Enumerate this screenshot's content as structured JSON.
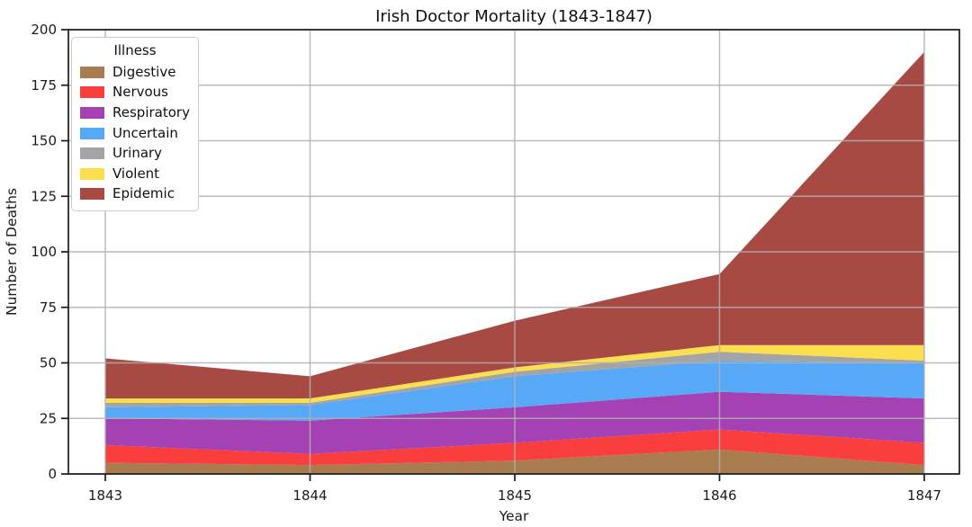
{
  "chart_data": {
    "type": "area",
    "stacked": true,
    "title": "Irish Doctor Mortality (1843-1847)",
    "xlabel": "Year",
    "ylabel": "Number of Deaths",
    "x": [
      1843,
      1844,
      1845,
      1846,
      1847
    ],
    "series": [
      {
        "name": "Digestive",
        "color": "#a97c4f",
        "values": [
          5,
          4,
          6,
          11,
          4
        ]
      },
      {
        "name": "Nervous",
        "color": "#fa3d3d",
        "values": [
          8,
          5,
          8,
          9,
          10
        ]
      },
      {
        "name": "Respiratory",
        "color": "#a442b4",
        "values": [
          12,
          15,
          16,
          17,
          20
        ]
      },
      {
        "name": "Uncertain",
        "color": "#57a9f8",
        "values": [
          5,
          7,
          14,
          14,
          16
        ]
      },
      {
        "name": "Urinary",
        "color": "#a4a4a4",
        "values": [
          2,
          1,
          2,
          4,
          1
        ]
      },
      {
        "name": "Violent",
        "color": "#fbdf4f",
        "values": [
          2,
          2,
          2,
          3,
          7
        ]
      },
      {
        "name": "Epidemic",
        "color": "#a84a44",
        "values": [
          18,
          10,
          21,
          32,
          132
        ]
      }
    ],
    "totals": [
      52,
      44,
      69,
      90,
      190
    ],
    "legend_title": "Illness",
    "legend_position": "upper left",
    "ylim": [
      0,
      200
    ],
    "yticks": [
      0,
      25,
      50,
      75,
      100,
      125,
      150,
      175,
      200
    ],
    "grid": true,
    "colors": {
      "grid": "#b0b0b0",
      "spine": "#1a1a1a",
      "background": "#ffffff"
    }
  }
}
